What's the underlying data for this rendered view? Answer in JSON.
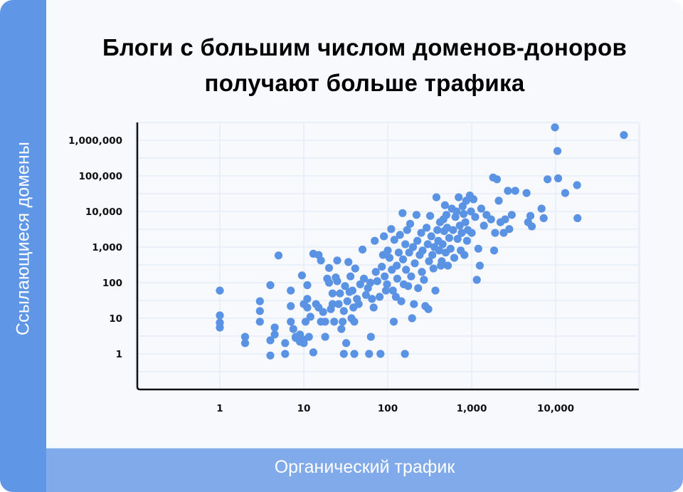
{
  "title_line1": "Блоги с большим числом доменов-доноров",
  "title_line2": "получают больше трафика",
  "y_axis_label": "Ссылающиеся домены",
  "x_axis_label": "Органический трафик",
  "colors": {
    "left_band": "#6096e6",
    "bottom_band": "#80aaea",
    "background": "#f7f9fd",
    "point": "#5b93e4",
    "grid": "#e6eefa",
    "axis": "#111111"
  },
  "chart_data": {
    "type": "scatter",
    "title": "Блоги с большим числом доменов-доноров получают больше трафика",
    "xlabel": "Органический трафик",
    "ylabel": "Ссылающиеся домены",
    "xscale": "log",
    "yscale": "log",
    "x_ticks": [
      1,
      10,
      100,
      1000,
      10000
    ],
    "x_tick_labels": [
      "1",
      "10",
      "100",
      "1,000",
      "10,000"
    ],
    "y_ticks": [
      1,
      10,
      100,
      1000,
      10000,
      100000,
      1000000
    ],
    "y_tick_labels": [
      "1",
      "10",
      "100",
      "1,000",
      "10,000",
      "100,000",
      "1,000,000"
    ],
    "xlim": [
      0.1,
      100000
    ],
    "ylim": [
      0.3,
      3000000
    ],
    "grid": true,
    "legend": null,
    "points": [
      [
        1,
        60
      ],
      [
        1,
        12
      ],
      [
        1,
        7.5
      ],
      [
        1,
        5.5
      ],
      [
        2,
        3
      ],
      [
        2,
        2
      ],
      [
        3,
        30
      ],
      [
        3,
        16
      ],
      [
        3,
        8
      ],
      [
        4,
        85
      ],
      [
        4,
        2.4
      ],
      [
        4,
        0.9
      ],
      [
        4.5,
        5.5
      ],
      [
        4.5,
        3.5
      ],
      [
        5,
        580
      ],
      [
        6,
        2
      ],
      [
        6,
        1
      ],
      [
        7,
        60
      ],
      [
        7,
        22
      ],
      [
        7,
        8
      ],
      [
        7.5,
        5
      ],
      [
        8,
        2.8
      ],
      [
        8,
        3
      ],
      [
        9,
        3.5
      ],
      [
        9,
        2.2
      ],
      [
        9.5,
        160
      ],
      [
        10,
        25
      ],
      [
        10,
        2.5
      ],
      [
        10,
        2
      ],
      [
        10.5,
        8
      ],
      [
        11,
        85
      ],
      [
        11,
        35
      ],
      [
        11,
        20
      ],
      [
        11.5,
        3
      ],
      [
        12,
        11
      ],
      [
        13,
        1.1
      ],
      [
        13,
        650
      ],
      [
        14,
        25
      ],
      [
        15,
        20
      ],
      [
        15,
        600
      ],
      [
        16,
        420
      ],
      [
        16,
        8
      ],
      [
        17,
        15
      ],
      [
        18,
        3
      ],
      [
        18,
        8
      ],
      [
        19,
        130
      ],
      [
        20,
        260
      ],
      [
        20,
        100
      ],
      [
        21,
        18
      ],
      [
        22,
        50
      ],
      [
        22,
        25
      ],
      [
        23,
        8
      ],
      [
        24,
        140
      ],
      [
        25,
        420
      ],
      [
        25,
        110
      ],
      [
        26,
        25
      ],
      [
        27,
        50
      ],
      [
        28,
        5
      ],
      [
        29,
        8
      ],
      [
        30,
        1
      ],
      [
        30,
        16
      ],
      [
        31,
        80
      ],
      [
        32,
        2
      ],
      [
        33,
        30
      ],
      [
        34,
        380
      ],
      [
        35,
        55
      ],
      [
        36,
        150
      ],
      [
        37,
        10
      ],
      [
        38,
        60
      ],
      [
        39,
        20
      ],
      [
        40,
        1
      ],
      [
        40,
        8
      ],
      [
        41,
        250
      ],
      [
        43,
        35
      ],
      [
        45,
        25
      ],
      [
        47,
        90
      ],
      [
        50,
        850
      ],
      [
        52,
        130
      ],
      [
        55,
        45
      ],
      [
        58,
        70
      ],
      [
        60,
        1
      ],
      [
        62,
        100
      ],
      [
        63,
        3
      ],
      [
        65,
        35
      ],
      [
        68,
        20
      ],
      [
        70,
        1500
      ],
      [
        72,
        200
      ],
      [
        75,
        110
      ],
      [
        80,
        40
      ],
      [
        82,
        1
      ],
      [
        85,
        280
      ],
      [
        88,
        600
      ],
      [
        90,
        2000
      ],
      [
        92,
        150
      ],
      [
        95,
        60
      ],
      [
        98,
        90
      ],
      [
        100,
        800
      ],
      [
        105,
        500
      ],
      [
        110,
        3200
      ],
      [
        112,
        230
      ],
      [
        115,
        60
      ],
      [
        118,
        8
      ],
      [
        120,
        1600
      ],
      [
        125,
        40
      ],
      [
        128,
        300
      ],
      [
        130,
        130
      ],
      [
        135,
        700
      ],
      [
        140,
        2200
      ],
      [
        145,
        30
      ],
      [
        150,
        9000
      ],
      [
        152,
        450
      ],
      [
        155,
        90
      ],
      [
        160,
        1
      ],
      [
        162,
        1200
      ],
      [
        165,
        230
      ],
      [
        170,
        3000
      ],
      [
        175,
        80
      ],
      [
        180,
        700
      ],
      [
        185,
        4500
      ],
      [
        190,
        150
      ],
      [
        195,
        10
      ],
      [
        200,
        1000
      ],
      [
        205,
        25
      ],
      [
        210,
        350
      ],
      [
        220,
        8000
      ],
      [
        225,
        1500
      ],
      [
        230,
        70
      ],
      [
        240,
        600
      ],
      [
        250,
        2500
      ],
      [
        255,
        200
      ],
      [
        260,
        800
      ],
      [
        270,
        120
      ],
      [
        280,
        22
      ],
      [
        290,
        3500
      ],
      [
        300,
        1200
      ],
      [
        305,
        18
      ],
      [
        310,
        400
      ],
      [
        320,
        7500
      ],
      [
        330,
        2000
      ],
      [
        340,
        600
      ],
      [
        350,
        250
      ],
      [
        360,
        1000
      ],
      [
        370,
        60
      ],
      [
        380,
        25000
      ],
      [
        390,
        3000
      ],
      [
        400,
        1500
      ],
      [
        410,
        800
      ],
      [
        420,
        5000
      ],
      [
        430,
        300
      ],
      [
        440,
        400
      ],
      [
        450,
        1200
      ],
      [
        460,
        6000
      ],
      [
        470,
        2800
      ],
      [
        480,
        15000
      ],
      [
        490,
        700
      ],
      [
        500,
        8000
      ],
      [
        510,
        3500
      ],
      [
        520,
        300
      ],
      [
        540,
        1800
      ],
      [
        560,
        900
      ],
      [
        580,
        12000
      ],
      [
        600,
        3000
      ],
      [
        620,
        500
      ],
      [
        640,
        7000
      ],
      [
        660,
        10000
      ],
      [
        680,
        1700
      ],
      [
        700,
        25000
      ],
      [
        720,
        4000
      ],
      [
        740,
        800
      ],
      [
        760,
        2500
      ],
      [
        780,
        14000
      ],
      [
        800,
        8500
      ],
      [
        820,
        600
      ],
      [
        840,
        5000
      ],
      [
        860,
        20000
      ],
      [
        880,
        1500
      ],
      [
        900,
        3000
      ],
      [
        950,
        28000
      ],
      [
        980,
        10000
      ],
      [
        1000,
        2500
      ],
      [
        1050,
        22000
      ],
      [
        1100,
        7000
      ],
      [
        1150,
        120
      ],
      [
        1200,
        900
      ],
      [
        1250,
        300
      ],
      [
        1300,
        12000
      ],
      [
        1400,
        4000
      ],
      [
        1500,
        8000
      ],
      [
        1700,
        6000
      ],
      [
        1800,
        90000
      ],
      [
        1850,
        800
      ],
      [
        1900,
        2500
      ],
      [
        2000,
        80000
      ],
      [
        2100,
        20000
      ],
      [
        2200,
        5000
      ],
      [
        2400,
        2500
      ],
      [
        2500,
        6000
      ],
      [
        2700,
        38000
      ],
      [
        2800,
        3200
      ],
      [
        3000,
        8000
      ],
      [
        3300,
        38000
      ],
      [
        4500,
        33000
      ],
      [
        4700,
        5000
      ],
      [
        5000,
        7500
      ],
      [
        5200,
        3800
      ],
      [
        6800,
        12000
      ],
      [
        7200,
        6500
      ],
      [
        8000,
        80000
      ],
      [
        9800,
        2300000
      ],
      [
        10500,
        500000
      ],
      [
        10700,
        85000
      ],
      [
        13000,
        33000
      ],
      [
        18000,
        55000
      ],
      [
        18200,
        6500
      ],
      [
        65000,
        1400000
      ]
    ]
  }
}
